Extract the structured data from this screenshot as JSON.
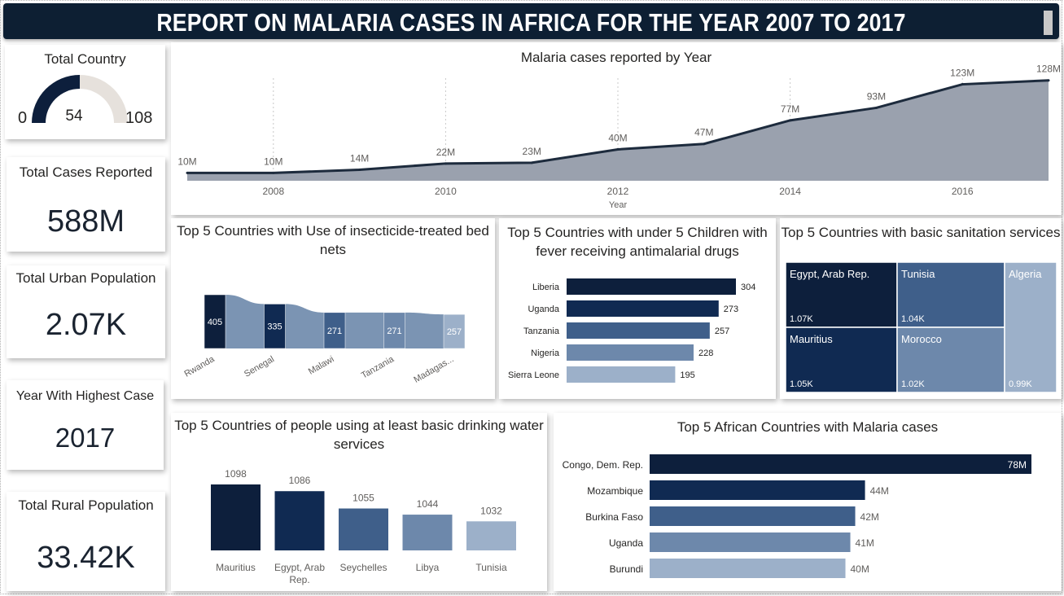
{
  "header": {
    "title": "REPORT ON MALARIA CASES IN AFRICA FOR THE YEAR 2007 TO 2017"
  },
  "kpis": {
    "total_country": {
      "label": "Total Country",
      "value": "54",
      "min": "0",
      "max": "108",
      "fraction": 0.5
    },
    "total_cases": {
      "label": "Total Cases Reported",
      "value": "588M"
    },
    "urban": {
      "label": "Total Urban Population",
      "value": "2.07K"
    },
    "highest_year": {
      "label": "Year With Highest Case",
      "value": "2017"
    },
    "rural": {
      "label": "Total Rural Population",
      "value": "33.42K"
    }
  },
  "colors": {
    "navy": "#0d1f3c",
    "c1": "#102a52",
    "c2": "#3f5f8a",
    "c3": "#6d88ab",
    "c4": "#9cb0c9",
    "area": "#9aa1ae",
    "line": "#1d2b3d"
  },
  "chart_data": [
    {
      "type": "area",
      "title": "Malaria cases reported by Year",
      "xlabel": "Year",
      "ylabel": "",
      "x": [
        2007,
        2008,
        2009,
        2010,
        2011,
        2012,
        2013,
        2014,
        2015,
        2016,
        2017
      ],
      "values": [
        10,
        10,
        14,
        22,
        23,
        40,
        47,
        77,
        93,
        123,
        128
      ],
      "labels": [
        "10M",
        "10M",
        "14M",
        "22M",
        "23M",
        "40M",
        "47M",
        "77M",
        "93M",
        "123M",
        "128M"
      ],
      "ticks": [
        "2008",
        "2010",
        "2012",
        "2014",
        "2016"
      ],
      "unit": "M",
      "ylim": [
        0,
        135
      ]
    },
    {
      "type": "bar",
      "title": "Top 5 Countries with Use of insecticide-treated bed nets",
      "categories": [
        "Rwanda",
        "Senegal",
        "Malawi",
        "Tanzania",
        "Madagas..."
      ],
      "values": [
        405,
        335,
        271,
        271,
        257
      ]
    },
    {
      "type": "bar",
      "title": "Top 5 Countries with under 5 Children with fever receiving antimalarial drugs",
      "categories": [
        "Liberia",
        "Uganda",
        "Tanzania",
        "Nigeria",
        "Sierra Leone"
      ],
      "values": [
        304,
        273,
        257,
        228,
        195
      ]
    },
    {
      "type": "heatmap",
      "title": "Top 5 Countries with basic sanitation services",
      "categories": [
        "Egypt, Arab Rep.",
        "Tunisia",
        "Mauritius",
        "Morocco",
        "Algeria"
      ],
      "values": [
        1.07,
        1.04,
        1.05,
        1.02,
        0.99
      ],
      "labels": [
        "1.07K",
        "1.04K",
        "1.05K",
        "1.02K",
        "0.99K"
      ]
    },
    {
      "type": "bar",
      "title": "Top 5 Countries of people using at least basic drinking water services",
      "categories": [
        "Mauritius",
        "Egypt, Arab Rep.",
        "Seychelles",
        "Libya",
        "Tunisia"
      ],
      "values": [
        1098,
        1086,
        1055,
        1044,
        1032
      ]
    },
    {
      "type": "bar",
      "title": "Top 5 African Countries with Malaria cases",
      "categories": [
        "Congo, Dem. Rep.",
        "Mozambique",
        "Burkina Faso",
        "Uganda",
        "Burundi"
      ],
      "values": [
        78,
        44,
        42,
        41,
        40
      ],
      "labels": [
        "78M",
        "44M",
        "42M",
        "41M",
        "40M"
      ]
    }
  ]
}
